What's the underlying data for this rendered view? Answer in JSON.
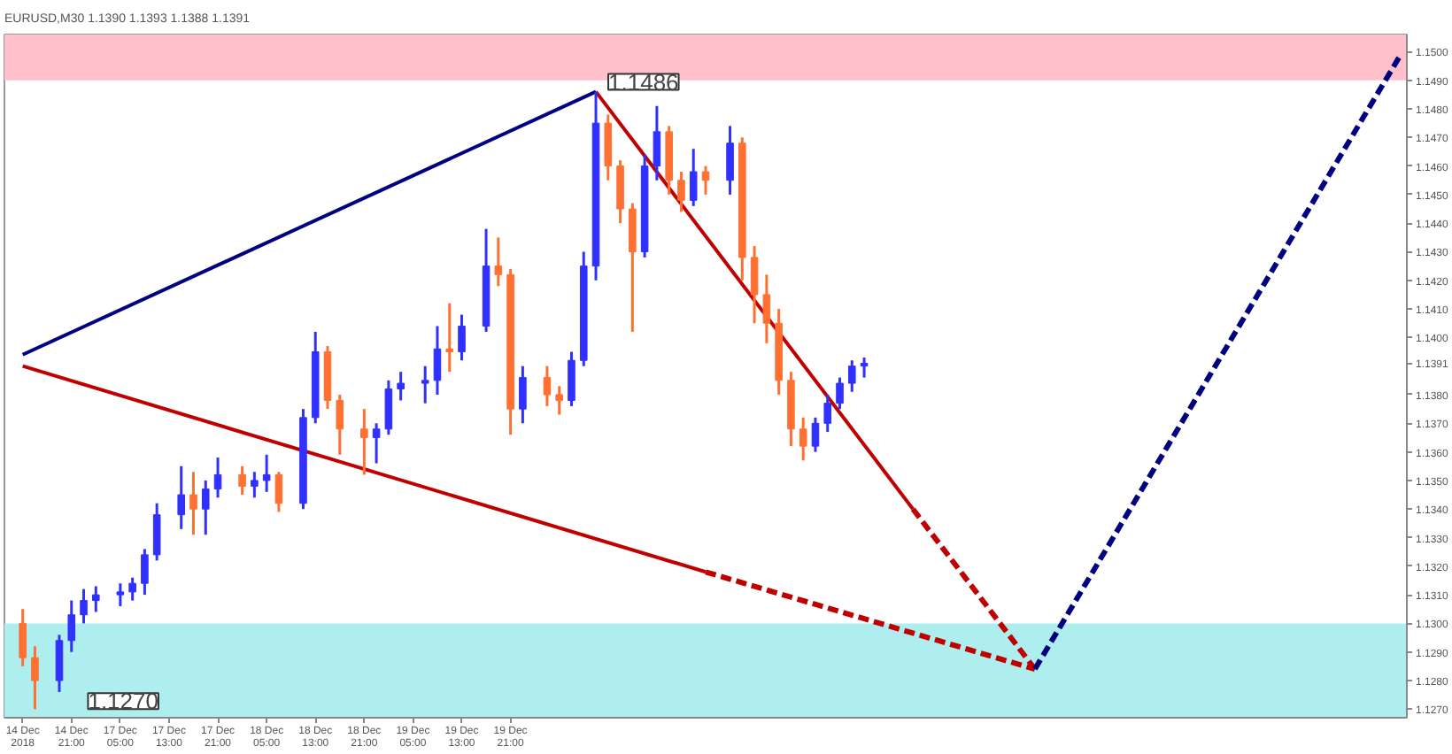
{
  "chart_data": {
    "type": "candlestick",
    "title": "EURUSD,M30  1.1390 1.1393 1.1388 1.1391",
    "categories": [
      "14 Dec 2018",
      null,
      null,
      null,
      "14 Dec 21:00",
      null,
      null,
      null,
      "17 Dec 05:00",
      null,
      null,
      null,
      "17 Dec 13:00",
      null,
      null,
      null,
      "17 Dec 21:00",
      null,
      null,
      null,
      "18 Dec 05:00",
      null,
      null,
      null,
      "18 Dec 13:00",
      null,
      null,
      null,
      "18 Dec 21:00",
      null,
      null,
      null,
      "19 Dec 05:00",
      null,
      null,
      null,
      "19 Dec 13:00",
      null,
      null,
      null,
      "19 Dec 21:00",
      null,
      null,
      null,
      null,
      null,
      null,
      null,
      null,
      null,
      null,
      null,
      null,
      null,
      null,
      null,
      null,
      null,
      null,
      null,
      null,
      null,
      null,
      null,
      null,
      null,
      null,
      null,
      null,
      null,
      null,
      null,
      null,
      null,
      null,
      null,
      null,
      null,
      null,
      null,
      null,
      null,
      null,
      null,
      null,
      null,
      null,
      null,
      null,
      null,
      null,
      null,
      null,
      null,
      null,
      null,
      null,
      null,
      null,
      null,
      null,
      null,
      null,
      null,
      null,
      null,
      null,
      null,
      null,
      null,
      null,
      null,
      null,
      null
    ],
    "ohlc": [
      [
        1.13,
        1.1305,
        1.1285,
        1.1288
      ],
      [
        1.1288,
        1.1292,
        1.127,
        1.128
      ],
      null,
      [
        1.128,
        1.1296,
        1.1276,
        1.1294
      ],
      [
        1.1294,
        1.1308,
        1.129,
        1.1303
      ],
      [
        1.1303,
        1.1312,
        1.13,
        1.1308
      ],
      [
        1.1308,
        1.1313,
        1.1304,
        1.131
      ],
      null,
      [
        1.131,
        1.1314,
        1.1306,
        1.1311
      ],
      [
        1.1311,
        1.1316,
        1.1308,
        1.1314
      ],
      [
        1.1314,
        1.1326,
        1.131,
        1.1324
      ],
      [
        1.1324,
        1.1342,
        1.1322,
        1.1338
      ],
      null,
      [
        1.1338,
        1.1355,
        1.1333,
        1.1345
      ],
      [
        1.1345,
        1.1353,
        1.1331,
        1.134
      ],
      [
        1.134,
        1.135,
        1.1331,
        1.1347
      ],
      [
        1.1347,
        1.1358,
        1.1344,
        1.1352
      ],
      null,
      [
        1.1352,
        1.1355,
        1.1345,
        1.1348
      ],
      [
        1.1348,
        1.1353,
        1.1344,
        1.135
      ],
      [
        1.135,
        1.1359,
        1.1346,
        1.1352
      ],
      [
        1.1352,
        1.1353,
        1.1339,
        1.1342
      ],
      null,
      [
        1.1342,
        1.1375,
        1.134,
        1.1372
      ],
      [
        1.1372,
        1.1402,
        1.137,
        1.1395
      ],
      [
        1.1395,
        1.1397,
        1.1375,
        1.1378
      ],
      [
        1.1378,
        1.138,
        1.1359,
        1.1368
      ],
      null,
      [
        1.1368,
        1.1375,
        1.1352,
        1.1365
      ],
      [
        1.1365,
        1.137,
        1.1356,
        1.1368
      ],
      [
        1.1368,
        1.1385,
        1.1366,
        1.1382
      ],
      [
        1.1382,
        1.1388,
        1.1378,
        1.1384
      ],
      null,
      [
        1.1384,
        1.139,
        1.1377,
        1.1385
      ],
      [
        1.1385,
        1.1404,
        1.138,
        1.1396
      ],
      [
        1.1396,
        1.1412,
        1.1388,
        1.1395
      ],
      [
        1.1395,
        1.1408,
        1.1392,
        1.1404
      ],
      null,
      [
        1.1404,
        1.1438,
        1.1402,
        1.1425
      ],
      [
        1.1425,
        1.1435,
        1.1418,
        1.1422
      ],
      [
        1.1422,
        1.1424,
        1.1366,
        1.1375
      ],
      [
        1.1375,
        1.139,
        1.137,
        1.1386
      ],
      null,
      [
        1.1386,
        1.139,
        1.1376,
        1.138
      ],
      [
        1.138,
        1.1383,
        1.1373,
        1.1378
      ],
      [
        1.1378,
        1.1395,
        1.1376,
        1.1392
      ],
      [
        1.1392,
        1.143,
        1.139,
        1.1425
      ],
      [
        1.1425,
        1.1486,
        1.142,
        1.1475
      ],
      [
        1.1475,
        1.1478,
        1.1455,
        1.146
      ],
      [
        1.146,
        1.1462,
        1.144,
        1.1445
      ],
      [
        1.1445,
        1.1447,
        1.1402,
        1.143
      ],
      [
        1.143,
        1.1464,
        1.1428,
        1.146
      ],
      [
        1.146,
        1.1481,
        1.1455,
        1.1472
      ],
      [
        1.1472,
        1.1474,
        1.145,
        1.1455
      ],
      [
        1.1455,
        1.1458,
        1.1444,
        1.1448
      ],
      [
        1.1448,
        1.1466,
        1.1446,
        1.1458
      ],
      [
        1.1458,
        1.146,
        1.145,
        1.1455
      ],
      null,
      [
        1.1455,
        1.1474,
        1.145,
        1.1468
      ],
      [
        1.1468,
        1.147,
        1.142,
        1.1428
      ],
      [
        1.1428,
        1.1432,
        1.1405,
        1.1415
      ],
      [
        1.1415,
        1.1422,
        1.1398,
        1.1405
      ],
      [
        1.1405,
        1.141,
        1.138,
        1.1385
      ],
      [
        1.1385,
        1.1388,
        1.1362,
        1.1368
      ],
      [
        1.1368,
        1.1372,
        1.1357,
        1.1362
      ],
      [
        1.1362,
        1.1372,
        1.136,
        1.137
      ],
      [
        1.137,
        1.138,
        1.1367,
        1.1377
      ],
      [
        1.1377,
        1.1386,
        1.1375,
        1.1384
      ],
      [
        1.1384,
        1.1392,
        1.1381,
        1.139
      ],
      [
        1.139,
        1.1393,
        1.1386,
        1.1391
      ],
      null,
      null,
      null,
      null,
      null,
      null,
      null,
      null,
      null,
      null,
      null,
      null,
      null,
      null,
      null,
      null,
      null,
      null,
      null,
      null,
      null,
      null,
      null,
      null,
      null,
      null,
      null,
      null,
      null,
      null,
      null,
      null,
      null,
      null,
      null,
      null,
      null,
      null,
      null,
      null,
      null,
      null,
      null,
      null
    ],
    "colors": [
      "#ff7033",
      "#ff7033",
      null,
      "#3030ff",
      "#3030ff",
      "#3030ff",
      "#3030ff",
      null,
      "#3030ff",
      "#3030ff",
      "#3030ff",
      "#3030ff",
      null,
      "#3030ff",
      "#ff7033",
      "#3030ff",
      "#3030ff",
      null,
      "#ff7033",
      "#3030ff",
      "#3030ff",
      "#ff7033",
      null,
      "#3030ff",
      "#3030ff",
      "#ff7033",
      "#ff7033",
      null,
      "#ff7033",
      "#3030ff",
      "#3030ff",
      "#3030ff",
      null,
      "#3030ff",
      "#3030ff",
      "#ff7033",
      "#3030ff",
      null,
      "#3030ff",
      "#ff7033",
      "#ff7033",
      "#3030ff",
      null,
      "#ff7033",
      "#ff7033",
      "#3030ff",
      "#3030ff",
      "#3030ff",
      "#ff7033",
      "#ff7033",
      "#ff7033",
      "#3030ff",
      "#3030ff",
      "#ff7033",
      "#ff7033",
      "#3030ff",
      "#ff7033",
      null,
      "#3030ff",
      "#ff7033",
      "#ff7033",
      "#ff7033",
      "#ff7033",
      "#ff7033",
      "#ff7033",
      "#3030ff",
      "#3030ff",
      "#3030ff",
      "#3030ff",
      "#3030ff",
      null,
      null,
      null,
      null,
      null,
      null,
      null,
      null,
      null,
      null,
      null,
      null,
      null,
      null,
      null,
      null,
      null,
      null,
      null,
      null,
      null,
      null,
      null,
      null,
      null,
      null,
      null,
      null,
      null,
      null,
      null,
      null,
      null,
      null,
      null,
      null,
      null,
      null,
      null,
      null,
      null,
      null,
      null,
      null
    ],
    "series": [
      {
        "type": "line",
        "color": "#000080",
        "line_style": "solid",
        "values": [
          1.1394,
          null,
          null,
          null,
          null,
          null,
          null,
          null,
          null,
          null,
          null,
          null,
          null,
          null,
          null,
          null,
          null,
          null,
          null,
          null,
          null,
          null,
          null,
          null,
          null,
          null,
          null,
          null,
          null,
          null,
          null,
          null,
          null,
          null,
          null,
          null,
          null,
          null,
          null,
          null,
          null,
          null,
          null,
          null,
          null,
          null,
          null,
          1.1486,
          null,
          null,
          null,
          null,
          null,
          null,
          null,
          null,
          null,
          null,
          null,
          null,
          null,
          null,
          null,
          null,
          null,
          null,
          null,
          null,
          null,
          null,
          null,
          null,
          null,
          null,
          null,
          null,
          null,
          null,
          null,
          null,
          null,
          null,
          null,
          null,
          null,
          null,
          null,
          null,
          null,
          null,
          null,
          null,
          null,
          null,
          null,
          null,
          null,
          null,
          null,
          null,
          null,
          null,
          null,
          null,
          null,
          null,
          null,
          null,
          null,
          null,
          null,
          null,
          null,
          null
        ]
      },
      {
        "type": "line",
        "color": "#c00000",
        "line_style": "solid",
        "values": [
          1.139,
          null,
          null,
          null,
          null,
          null,
          null,
          null,
          null,
          null,
          null,
          null,
          null,
          null,
          null,
          null,
          null,
          null,
          null,
          null,
          null,
          null,
          null,
          null,
          null,
          null,
          null,
          null,
          null,
          null,
          null,
          null,
          null,
          null,
          null,
          null,
          null,
          null,
          null,
          null,
          null,
          null,
          null,
          null,
          null,
          null,
          null,
          null,
          null,
          null,
          null,
          null,
          null,
          null,
          null,
          null,
          1.1318,
          null,
          null,
          null,
          null,
          null,
          null,
          null,
          null,
          null,
          null,
          null,
          null,
          null,
          null,
          null,
          null,
          null,
          null,
          null,
          null,
          null,
          null,
          null,
          null,
          null,
          null,
          null,
          null,
          null,
          null,
          null,
          null,
          null,
          null,
          null,
          null,
          null,
          null,
          null,
          null,
          null,
          null,
          null,
          null,
          null,
          null,
          null,
          null,
          null,
          null,
          null,
          null,
          null,
          null,
          null,
          null,
          null
        ]
      },
      {
        "type": "line",
        "color": "#c00000",
        "line_style": "dashed",
        "values": [
          null,
          null,
          null,
          null,
          null,
          null,
          null,
          null,
          null,
          null,
          null,
          null,
          null,
          null,
          null,
          null,
          null,
          null,
          null,
          null,
          null,
          null,
          null,
          null,
          null,
          null,
          null,
          null,
          null,
          null,
          null,
          null,
          null,
          null,
          null,
          null,
          null,
          null,
          null,
          null,
          null,
          null,
          null,
          null,
          null,
          null,
          null,
          null,
          null,
          null,
          null,
          null,
          null,
          null,
          null,
          null,
          1.1318,
          null,
          null,
          null,
          null,
          null,
          null,
          null,
          null,
          null,
          null,
          null,
          null,
          null,
          null,
          null,
          null,
          null,
          null,
          null,
          null,
          null,
          null,
          null,
          null,
          null,
          null,
          1.1284,
          null,
          null,
          null,
          null,
          null,
          null,
          null,
          null,
          null,
          null,
          null,
          null,
          null,
          null,
          null,
          null,
          null,
          null,
          null,
          null,
          null,
          null,
          null,
          null,
          null,
          null,
          null,
          null,
          null,
          null
        ]
      },
      {
        "type": "line",
        "color": "#c00000",
        "line_style": "solid",
        "values": [
          null,
          null,
          null,
          null,
          null,
          null,
          null,
          null,
          null,
          null,
          null,
          null,
          null,
          null,
          null,
          null,
          null,
          null,
          null,
          null,
          null,
          null,
          null,
          null,
          null,
          null,
          null,
          null,
          null,
          null,
          null,
          null,
          null,
          null,
          null,
          null,
          null,
          null,
          null,
          null,
          null,
          null,
          null,
          null,
          null,
          null,
          null,
          1.1486,
          null,
          null,
          null,
          null,
          null,
          null,
          null,
          null,
          null,
          null,
          null,
          null,
          null,
          null,
          null,
          null,
          null,
          null,
          null,
          null,
          null,
          null,
          null,
          null,
          null,
          1.134,
          null,
          null,
          null,
          null,
          null,
          null,
          null,
          null,
          null,
          null,
          null,
          null,
          null,
          null,
          null,
          null,
          null,
          null,
          null,
          null,
          null,
          null,
          null,
          null,
          null,
          null,
          null,
          null,
          null,
          null,
          null,
          null,
          null,
          null,
          null,
          null,
          null,
          null,
          null,
          null
        ]
      },
      {
        "type": "line",
        "color": "#c00000",
        "line_style": "dashed",
        "values": [
          null,
          null,
          null,
          null,
          null,
          null,
          null,
          null,
          null,
          null,
          null,
          null,
          null,
          null,
          null,
          null,
          null,
          null,
          null,
          null,
          null,
          null,
          null,
          null,
          null,
          null,
          null,
          null,
          null,
          null,
          null,
          null,
          null,
          null,
          null,
          null,
          null,
          null,
          null,
          null,
          null,
          null,
          null,
          null,
          null,
          null,
          null,
          null,
          null,
          null,
          null,
          null,
          null,
          null,
          null,
          null,
          null,
          null,
          null,
          null,
          null,
          null,
          null,
          null,
          null,
          null,
          null,
          null,
          null,
          null,
          null,
          null,
          null,
          1.134,
          null,
          null,
          null,
          null,
          null,
          null,
          null,
          null,
          null,
          1.1284,
          null,
          null,
          null,
          null,
          null,
          null,
          null,
          null,
          null,
          null,
          null,
          null,
          null,
          null,
          null,
          null,
          null,
          null,
          null,
          null,
          null,
          null,
          null,
          null,
          null,
          null,
          null,
          null,
          null,
          null
        ]
      },
      {
        "type": "line",
        "color": "#000080",
        "line_style": "dashed",
        "values": [
          null,
          null,
          null,
          null,
          null,
          null,
          null,
          null,
          null,
          null,
          null,
          null,
          null,
          null,
          null,
          null,
          null,
          null,
          null,
          null,
          null,
          null,
          null,
          null,
          null,
          null,
          null,
          null,
          null,
          null,
          null,
          null,
          null,
          null,
          null,
          null,
          null,
          null,
          null,
          null,
          null,
          null,
          null,
          null,
          null,
          null,
          null,
          null,
          null,
          null,
          null,
          null,
          null,
          null,
          null,
          null,
          null,
          null,
          null,
          null,
          null,
          null,
          null,
          null,
          null,
          null,
          null,
          null,
          null,
          null,
          null,
          null,
          null,
          null,
          null,
          null,
          null,
          null,
          null,
          null,
          null,
          null,
          null,
          1.1284,
          null,
          null,
          null,
          null,
          null,
          null,
          null,
          null,
          null,
          null,
          null,
          null,
          null,
          null,
          null,
          null,
          null,
          null,
          null,
          null,
          null,
          null,
          null,
          null,
          null,
          null,
          null,
          null,
          null,
          1.1499
        ]
      }
    ],
    "bands": [
      {
        "axis": "y",
        "from": 1.149,
        "to": 1.1506,
        "color": "#ffc0cb"
      },
      {
        "axis": "y",
        "from": 1.1267,
        "to": 1.13,
        "color": "#afeeee"
      }
    ],
    "annotations": [
      "1.1486",
      "1.1270"
    ],
    "ylim": [
      1.1267,
      1.1506
    ],
    "yticks": [
      {
        "value": 1.127,
        "label": "1.1270"
      },
      {
        "value": 1.128,
        "label": "1.1280"
      },
      {
        "value": 1.129,
        "label": "1.1290"
      },
      {
        "value": 1.13,
        "label": "1.1300"
      },
      {
        "value": 1.131,
        "label": "1.1310"
      },
      {
        "value": 1.132,
        "label": "1.1320"
      },
      {
        "value": 1.133,
        "label": "1.1330"
      },
      {
        "value": 1.134,
        "label": "1.1340"
      },
      {
        "value": 1.135,
        "label": "1.1350"
      },
      {
        "value": 1.136,
        "label": "1.1360"
      },
      {
        "value": 1.137,
        "label": "1.1370"
      },
      {
        "value": 1.138,
        "label": "1.1380"
      },
      {
        "value": 1.1391,
        "label": "1.1391"
      },
      {
        "value": 1.14,
        "label": "1.1400"
      },
      {
        "value": 1.141,
        "label": "1.1410"
      },
      {
        "value": 1.142,
        "label": "1.1420"
      },
      {
        "value": 1.143,
        "label": "1.1430"
      },
      {
        "value": 1.144,
        "label": "1.1440"
      },
      {
        "value": 1.145,
        "label": "1.1450"
      },
      {
        "value": 1.146,
        "label": "1.1460"
      },
      {
        "value": 1.147,
        "label": "1.1470"
      },
      {
        "value": 1.148,
        "label": "1.1480"
      },
      {
        "value": 1.149,
        "label": "1.1490"
      },
      {
        "value": 1.15,
        "label": "1.1500"
      }
    ],
    "grid": false
  }
}
